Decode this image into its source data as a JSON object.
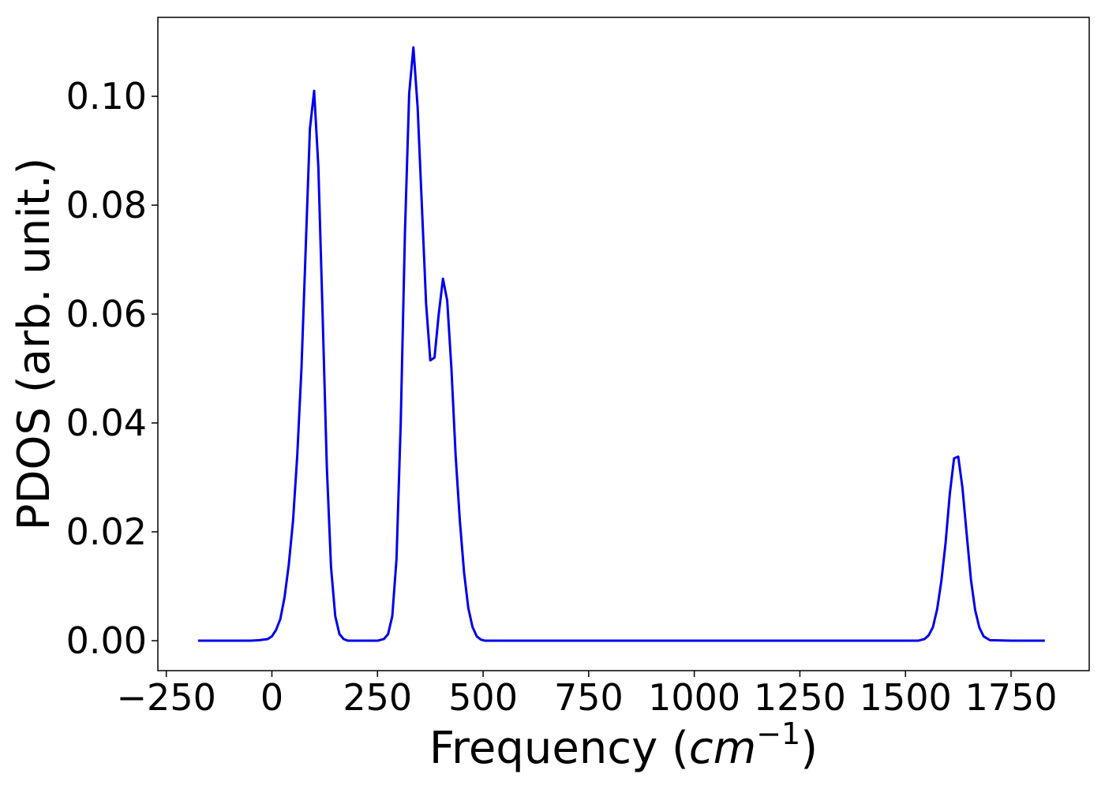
{
  "chart_data": {
    "type": "line",
    "title": "",
    "xlabel_main": "Frequency (",
    "xlabel_unit": "cm",
    "xlabel_exp": "−1",
    "xlabel_close": ")",
    "ylabel": "PDOS (arb. unit.)",
    "xlim": [
      -270,
      1935
    ],
    "ylim": [
      -0.0055,
      0.1145
    ],
    "xticks": [
      -250,
      0,
      250,
      500,
      750,
      1000,
      1250,
      1500,
      1750
    ],
    "xtick_labels": [
      "−250",
      "0",
      "250",
      "500",
      "750",
      "1000",
      "1250",
      "1500",
      "1750"
    ],
    "yticks": [
      0.0,
      0.02,
      0.04,
      0.06,
      0.08,
      0.1
    ],
    "ytick_labels": [
      "0.00",
      "0.02",
      "0.04",
      "0.06",
      "0.08",
      "0.10"
    ],
    "grid": false,
    "line_color": "#0000ee",
    "series": [
      {
        "x": [
          -175,
          -150,
          -100,
          -50,
          -30,
          -10,
          0,
          10,
          20,
          30,
          40,
          50,
          60,
          70,
          80,
          90,
          100,
          110,
          120,
          130,
          140,
          150,
          160,
          170,
          180,
          200,
          250,
          265,
          275,
          285,
          295,
          305,
          315,
          325,
          335,
          345,
          355,
          365,
          375,
          385,
          395,
          405,
          415,
          425,
          435,
          445,
          455,
          465,
          475,
          485,
          495,
          505,
          520,
          600,
          800,
          1000,
          1200,
          1400,
          1530,
          1545,
          1555,
          1565,
          1575,
          1585,
          1595,
          1605,
          1615,
          1625,
          1635,
          1645,
          1655,
          1665,
          1675,
          1685,
          1700,
          1750,
          1830
        ],
        "y": [
          0.0,
          0.0,
          0.0,
          0.0,
          0.0001,
          0.0003,
          0.0008,
          0.002,
          0.004,
          0.008,
          0.014,
          0.022,
          0.034,
          0.05,
          0.072,
          0.094,
          0.101,
          0.087,
          0.06,
          0.032,
          0.0135,
          0.0045,
          0.0012,
          0.0003,
          0.0,
          0.0,
          0.0,
          0.0003,
          0.0012,
          0.0045,
          0.015,
          0.04,
          0.075,
          0.1005,
          0.109,
          0.098,
          0.08,
          0.062,
          0.0515,
          0.052,
          0.06,
          0.0665,
          0.0625,
          0.05,
          0.034,
          0.022,
          0.0125,
          0.006,
          0.0025,
          0.0008,
          0.0002,
          0.0,
          0.0,
          0.0,
          0.0,
          0.0,
          0.0,
          0.0,
          0.0,
          0.0003,
          0.001,
          0.0025,
          0.0058,
          0.011,
          0.018,
          0.027,
          0.0335,
          0.0338,
          0.028,
          0.0195,
          0.0112,
          0.0056,
          0.0024,
          0.0008,
          0.0001,
          0.0,
          0.0
        ]
      }
    ]
  }
}
